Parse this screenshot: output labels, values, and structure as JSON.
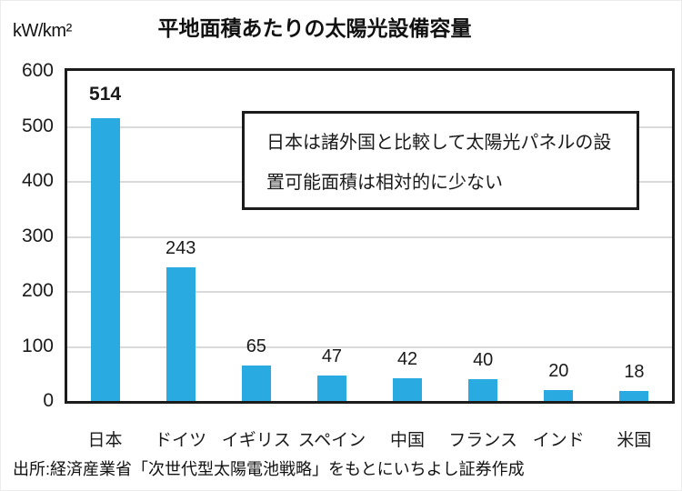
{
  "unit_label": "kW/km²",
  "title": "平地面積あたりの太陽光設備容量",
  "annotation": {
    "lines": [
      "日本は諸外国と比較して太陽光パネルの設",
      "置可能面積は相対的に少ない"
    ]
  },
  "source": "出所:経済産業省「次世代型太陽電池戦略」をもとにいちよし証券作成",
  "chart_data": {
    "type": "bar",
    "title": "平地面積あたりの太陽光設備容量",
    "categories": [
      "日本",
      "ドイツ",
      "イギリス",
      "スペイン",
      "中国",
      "フランス",
      "インド",
      "米国"
    ],
    "values": [
      514,
      243,
      65,
      47,
      42,
      40,
      20,
      18
    ],
    "xlabel": "",
    "ylabel": "kW/km²",
    "ylim": [
      0,
      600
    ],
    "ytick_step": 100,
    "yticks": [
      0,
      100,
      200,
      300,
      400,
      500,
      600
    ],
    "grid": true,
    "gridline_color": "#dadada",
    "bar_color": "#29abe2",
    "value_labels_shown": true,
    "emphasis_index": 0,
    "legend_position": "none",
    "annotation": "日本は諸外国と比較して太陽光パネルの設置可能面積は相対的に少ない"
  }
}
